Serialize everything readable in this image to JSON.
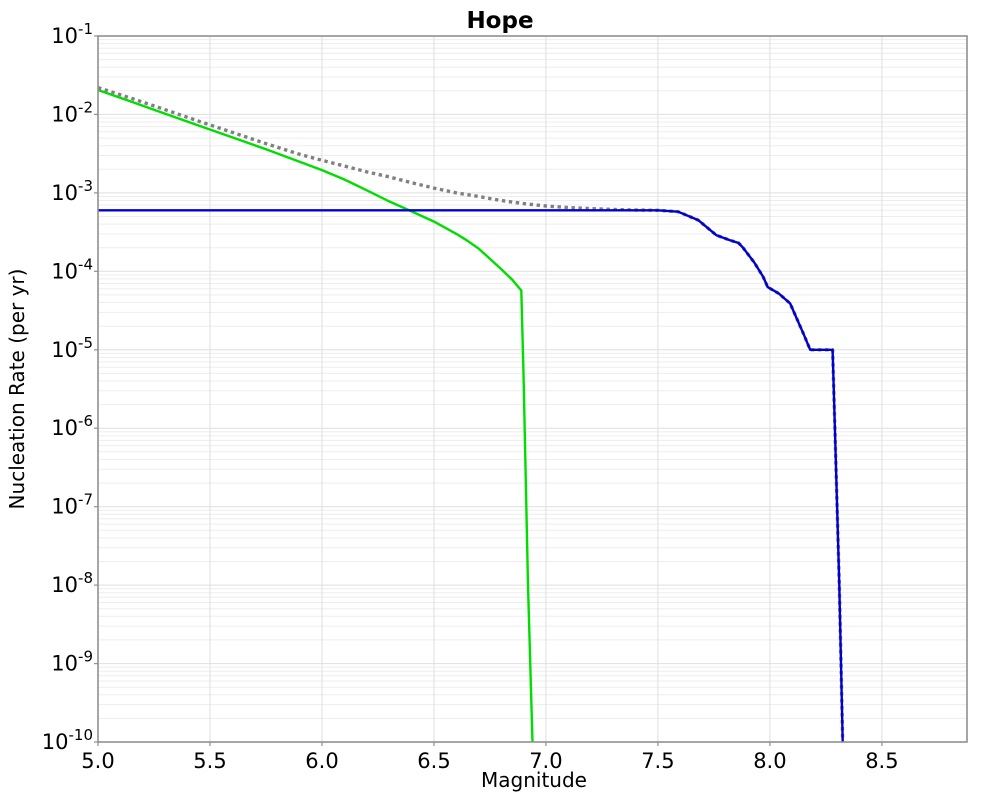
{
  "chart_data": {
    "type": "line",
    "title": "Hope",
    "xlabel": "Magnitude",
    "ylabel": "Nucleation Rate (per yr)",
    "xlim": [
      5.0,
      8.88
    ],
    "ylim": [
      1e-10,
      0.1
    ],
    "y_scale": "log",
    "grid": "major and minor horizontal log gridlines, major vertical gridlines",
    "legend_position": "none",
    "xticks": [
      "5.0",
      "5.5",
      "6.0",
      "6.5",
      "7.0",
      "7.5",
      "8.0",
      "8.5"
    ],
    "ytick_base": "10",
    "ytick_exponents": [
      "-1",
      "-2",
      "-3",
      "-4",
      "-5",
      "-6",
      "-7",
      "-8",
      "-9",
      "-10"
    ],
    "series": [
      {
        "name": "gray-dotted-curve",
        "color": "#808080",
        "style": "dotted",
        "width": 3.4,
        "points": [
          [
            5.0,
            0.022
          ],
          [
            5.15,
            0.016
          ],
          [
            5.3,
            0.0115
          ],
          [
            5.45,
            0.0082
          ],
          [
            5.6,
            0.0059
          ],
          [
            5.75,
            0.00425
          ],
          [
            5.9,
            0.0031
          ],
          [
            6.0,
            0.0026
          ],
          [
            6.1,
            0.0022
          ],
          [
            6.2,
            0.00185
          ],
          [
            6.3,
            0.0016
          ],
          [
            6.4,
            0.00135
          ],
          [
            6.5,
            0.00115
          ],
          [
            6.6,
            0.001
          ],
          [
            6.7,
            0.0009
          ],
          [
            6.8,
            0.0008
          ],
          [
            6.9,
            0.00073
          ],
          [
            7.0,
            0.00068
          ],
          [
            7.1,
            0.00065
          ],
          [
            7.2,
            0.00063
          ],
          [
            7.3,
            0.000615
          ],
          [
            7.4,
            0.000605
          ],
          [
            7.5,
            0.0006
          ],
          [
            7.59,
            0.000575
          ],
          [
            7.68,
            0.00045
          ],
          [
            7.76,
            0.00029
          ],
          [
            7.82,
            0.00025
          ],
          [
            7.86,
            0.00023
          ],
          [
            7.88,
            0.0002
          ],
          [
            7.93,
            0.00013
          ],
          [
            7.97,
            8.5e-05
          ],
          [
            7.99,
            6.3e-05
          ],
          [
            8.04,
            5.2e-05
          ],
          [
            8.09,
            3.9e-05
          ],
          [
            8.12,
            2.5e-05
          ],
          [
            8.15,
            1.6e-05
          ],
          [
            8.18,
            1e-05
          ],
          [
            8.28,
            1e-05
          ],
          [
            8.29,
            1e-06
          ],
          [
            8.31,
            1e-08
          ],
          [
            8.325,
            1e-10
          ]
        ]
      },
      {
        "name": "green-curve",
        "color": "#00dd00",
        "style": "solid",
        "width": 2.4,
        "points": [
          [
            5.0,
            0.0205
          ],
          [
            5.15,
            0.0145
          ],
          [
            5.3,
            0.0102
          ],
          [
            5.45,
            0.0072
          ],
          [
            5.6,
            0.0051
          ],
          [
            5.75,
            0.0036
          ],
          [
            5.9,
            0.0025
          ],
          [
            6.0,
            0.00195
          ],
          [
            6.1,
            0.00148
          ],
          [
            6.2,
            0.00108
          ],
          [
            6.3,
            0.00078
          ],
          [
            6.4,
            0.00058
          ],
          [
            6.5,
            0.00043
          ],
          [
            6.6,
            0.0003
          ],
          [
            6.65,
            0.000245
          ],
          [
            6.7,
            0.000195
          ],
          [
            6.8,
            0.000107
          ],
          [
            6.85,
            7.8e-05
          ],
          [
            6.89,
            5.7e-05
          ],
          [
            6.9,
            5e-06
          ],
          [
            6.92,
            1e-08
          ],
          [
            6.94,
            1e-10
          ]
        ]
      },
      {
        "name": "blue-curve",
        "color": "#0000d0",
        "style": "solid",
        "width": 2.4,
        "points": [
          [
            5.0,
            0.0006
          ],
          [
            7.5,
            0.0006
          ],
          [
            7.59,
            0.000575
          ],
          [
            7.68,
            0.00045
          ],
          [
            7.76,
            0.00029
          ],
          [
            7.82,
            0.00025
          ],
          [
            7.86,
            0.00023
          ],
          [
            7.88,
            0.0002
          ],
          [
            7.93,
            0.00013
          ],
          [
            7.97,
            8.5e-05
          ],
          [
            7.99,
            6.3e-05
          ],
          [
            8.04,
            5.2e-05
          ],
          [
            8.09,
            3.9e-05
          ],
          [
            8.12,
            2.5e-05
          ],
          [
            8.15,
            1.6e-05
          ],
          [
            8.18,
            1e-05
          ],
          [
            8.28,
            1e-05
          ],
          [
            8.29,
            1e-06
          ],
          [
            8.31,
            1e-08
          ],
          [
            8.325,
            1e-10
          ]
        ]
      }
    ],
    "style_colors": {
      "grid_major": "#dfdfdf",
      "grid_minor": "#ededed",
      "spine": "#909090",
      "tick": "#909090",
      "text": "#000000",
      "background": "#ffffff"
    }
  }
}
